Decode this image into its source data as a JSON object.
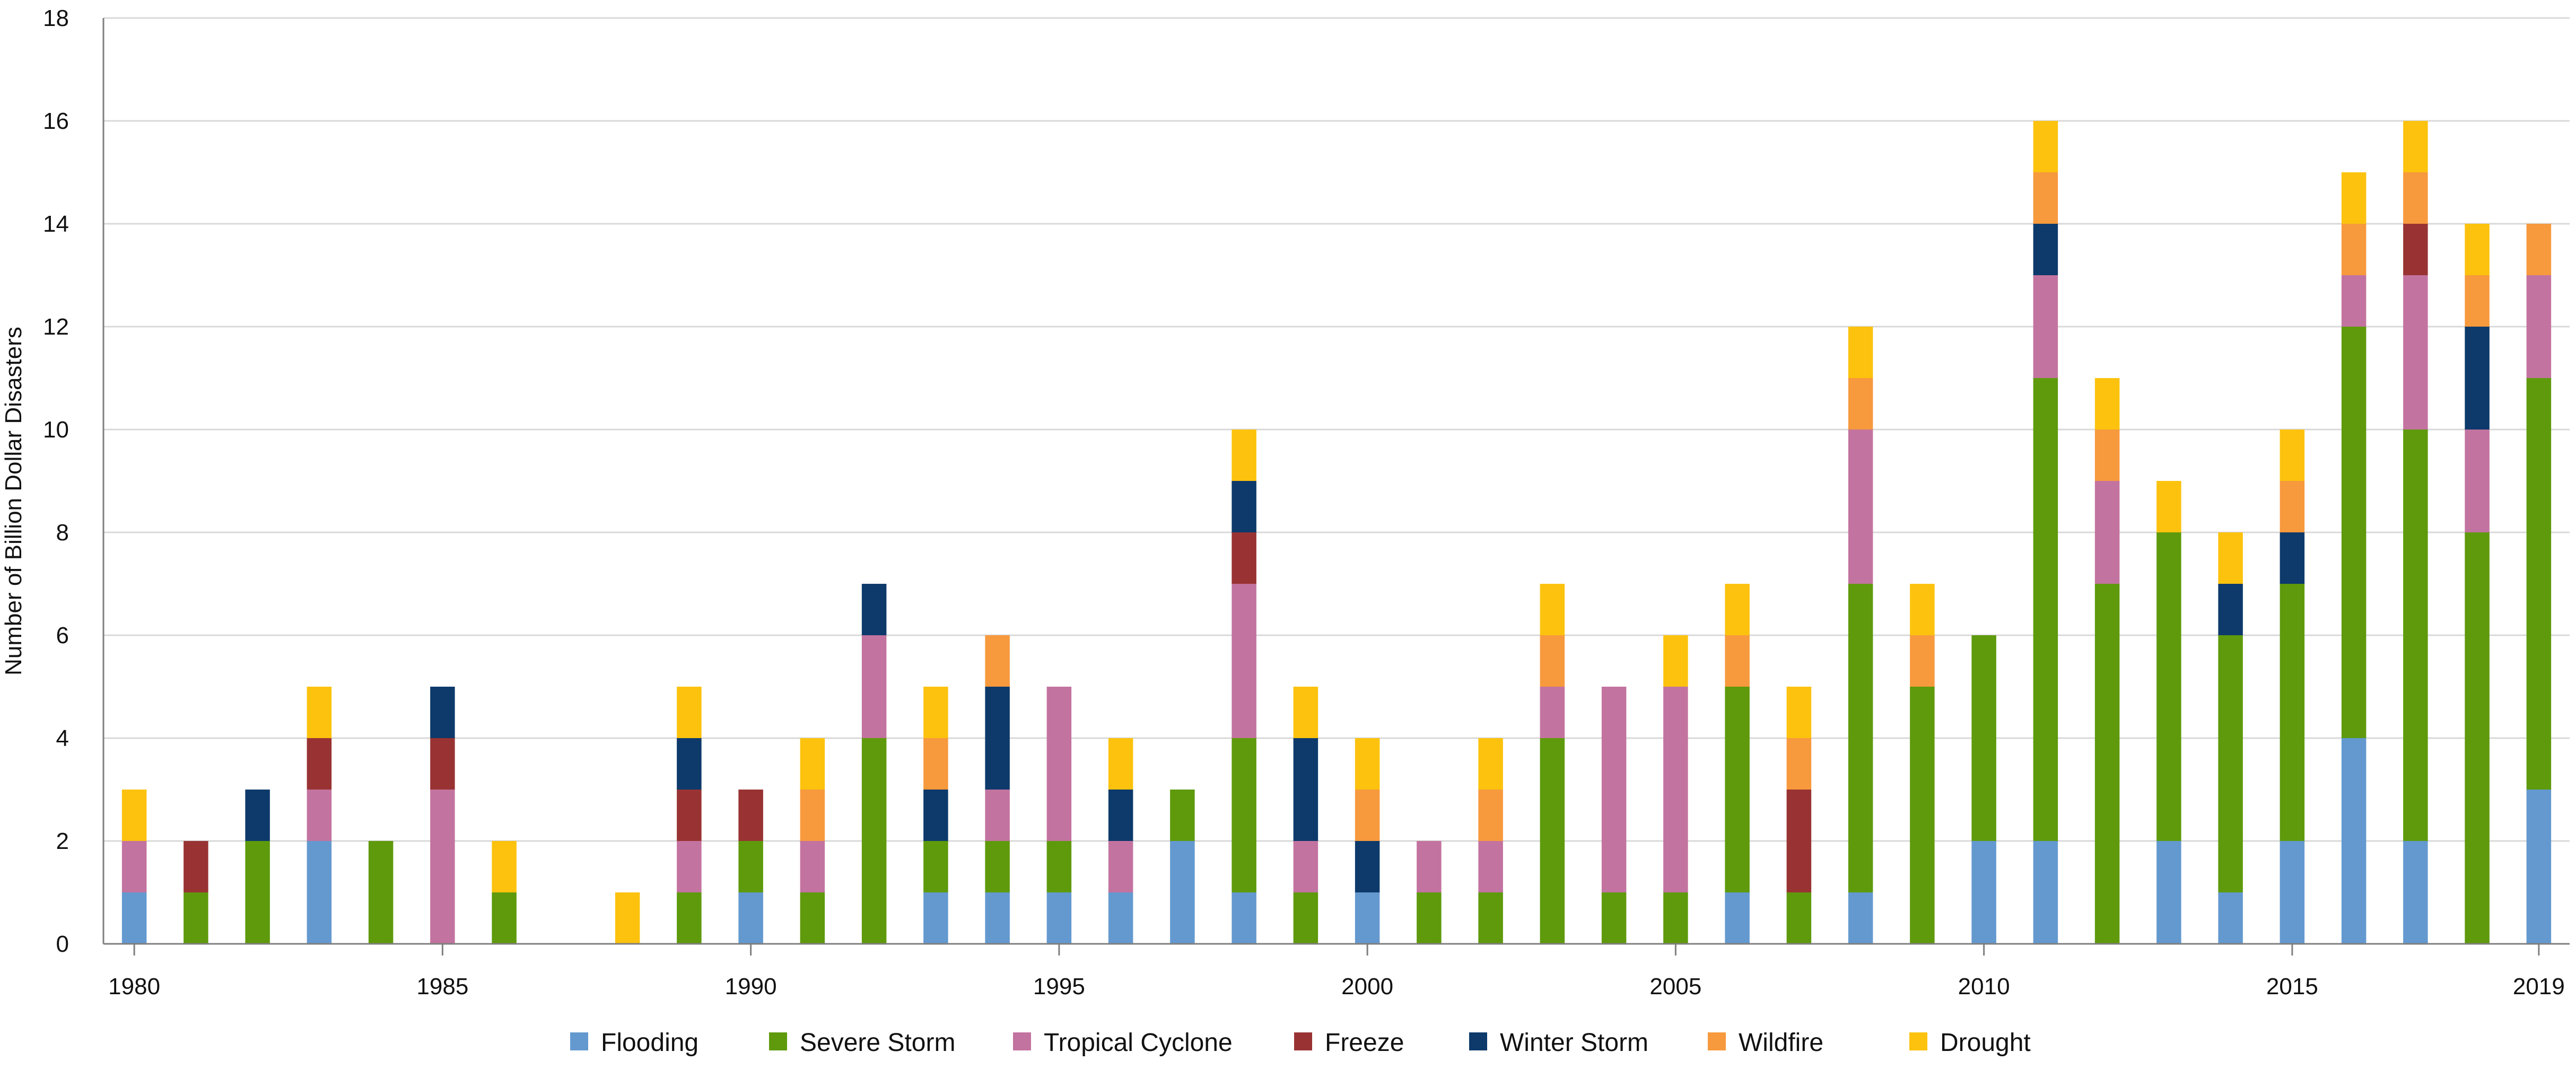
{
  "chart_data": {
    "type": "bar",
    "stacked": true,
    "title": "",
    "xlabel": "",
    "ylabel": "Number of Billion Dollar Disasters",
    "ylim": [
      0,
      18
    ],
    "yticks": [
      0,
      2,
      4,
      6,
      8,
      10,
      12,
      14,
      16,
      18
    ],
    "grid": true,
    "legend_position": "bottom",
    "categories": [
      1980,
      1981,
      1982,
      1983,
      1984,
      1985,
      1986,
      1987,
      1988,
      1989,
      1990,
      1991,
      1992,
      1993,
      1994,
      1995,
      1996,
      1997,
      1998,
      1999,
      2000,
      2001,
      2002,
      2003,
      2004,
      2005,
      2006,
      2007,
      2008,
      2009,
      2010,
      2011,
      2012,
      2013,
      2014,
      2015,
      2016,
      2017,
      2018,
      2019
    ],
    "x_tick_labels": [
      "1980",
      "1985",
      "1990",
      "1995",
      "2000",
      "2005",
      "2010",
      "2015",
      "2019"
    ],
    "series": [
      {
        "name": "Flooding",
        "color": "#6399cf",
        "values": [
          1,
          0,
          0,
          2,
          0,
          0,
          0,
          0,
          0,
          0,
          1,
          0,
          0,
          1,
          1,
          1,
          1,
          2,
          1,
          0,
          1,
          0,
          0,
          0,
          0,
          0,
          1,
          0,
          1,
          0,
          2,
          2,
          0,
          2,
          1,
          2,
          4,
          2,
          0,
          3
        ]
      },
      {
        "name": "Severe Storm",
        "color": "#5e9a0c",
        "values": [
          0,
          1,
          2,
          0,
          2,
          0,
          1,
          0,
          0,
          1,
          1,
          1,
          4,
          1,
          1,
          1,
          0,
          1,
          3,
          1,
          0,
          1,
          1,
          4,
          1,
          1,
          4,
          1,
          6,
          5,
          4,
          9,
          7,
          6,
          5,
          5,
          8,
          8,
          8,
          8
        ]
      },
      {
        "name": "Tropical Cyclone",
        "color": "#c3739f",
        "values": [
          1,
          0,
          0,
          1,
          0,
          3,
          0,
          0,
          0,
          1,
          0,
          1,
          2,
          0,
          1,
          3,
          1,
          0,
          3,
          1,
          0,
          1,
          1,
          1,
          4,
          4,
          0,
          0,
          3,
          0,
          0,
          2,
          2,
          0,
          0,
          0,
          1,
          3,
          2,
          2
        ]
      },
      {
        "name": "Freeze",
        "color": "#993333",
        "values": [
          0,
          1,
          0,
          1,
          0,
          1,
          0,
          0,
          0,
          1,
          1,
          0,
          0,
          0,
          0,
          0,
          0,
          0,
          1,
          0,
          0,
          0,
          0,
          0,
          0,
          0,
          0,
          2,
          0,
          0,
          0,
          0,
          0,
          0,
          0,
          0,
          0,
          1,
          0,
          0
        ]
      },
      {
        "name": "Winter Storm",
        "color": "#0d3a6b",
        "values": [
          0,
          0,
          1,
          0,
          0,
          1,
          0,
          0,
          0,
          1,
          0,
          0,
          1,
          1,
          2,
          0,
          1,
          0,
          1,
          2,
          1,
          0,
          0,
          0,
          0,
          0,
          0,
          0,
          0,
          0,
          0,
          1,
          0,
          0,
          1,
          1,
          0,
          0,
          2,
          0
        ]
      },
      {
        "name": "Wildfire",
        "color": "#f7993d",
        "values": [
          0,
          0,
          0,
          0,
          0,
          0,
          0,
          0,
          0,
          0,
          0,
          1,
          0,
          1,
          1,
          0,
          0,
          0,
          0,
          0,
          1,
          0,
          1,
          1,
          0,
          0,
          1,
          1,
          1,
          1,
          0,
          1,
          1,
          0,
          0,
          1,
          1,
          1,
          1,
          1
        ]
      },
      {
        "name": "Drought",
        "color": "#fcc20e",
        "values": [
          1,
          0,
          0,
          1,
          0,
          0,
          1,
          0,
          1,
          1,
          0,
          1,
          0,
          1,
          0,
          0,
          1,
          0,
          1,
          1,
          1,
          0,
          1,
          1,
          0,
          1,
          1,
          1,
          1,
          1,
          0,
          1,
          1,
          1,
          1,
          1,
          1,
          1,
          1,
          0
        ]
      }
    ]
  },
  "colors": {
    "grid": "#d9d9d9",
    "axis": "#7f7f7f"
  }
}
